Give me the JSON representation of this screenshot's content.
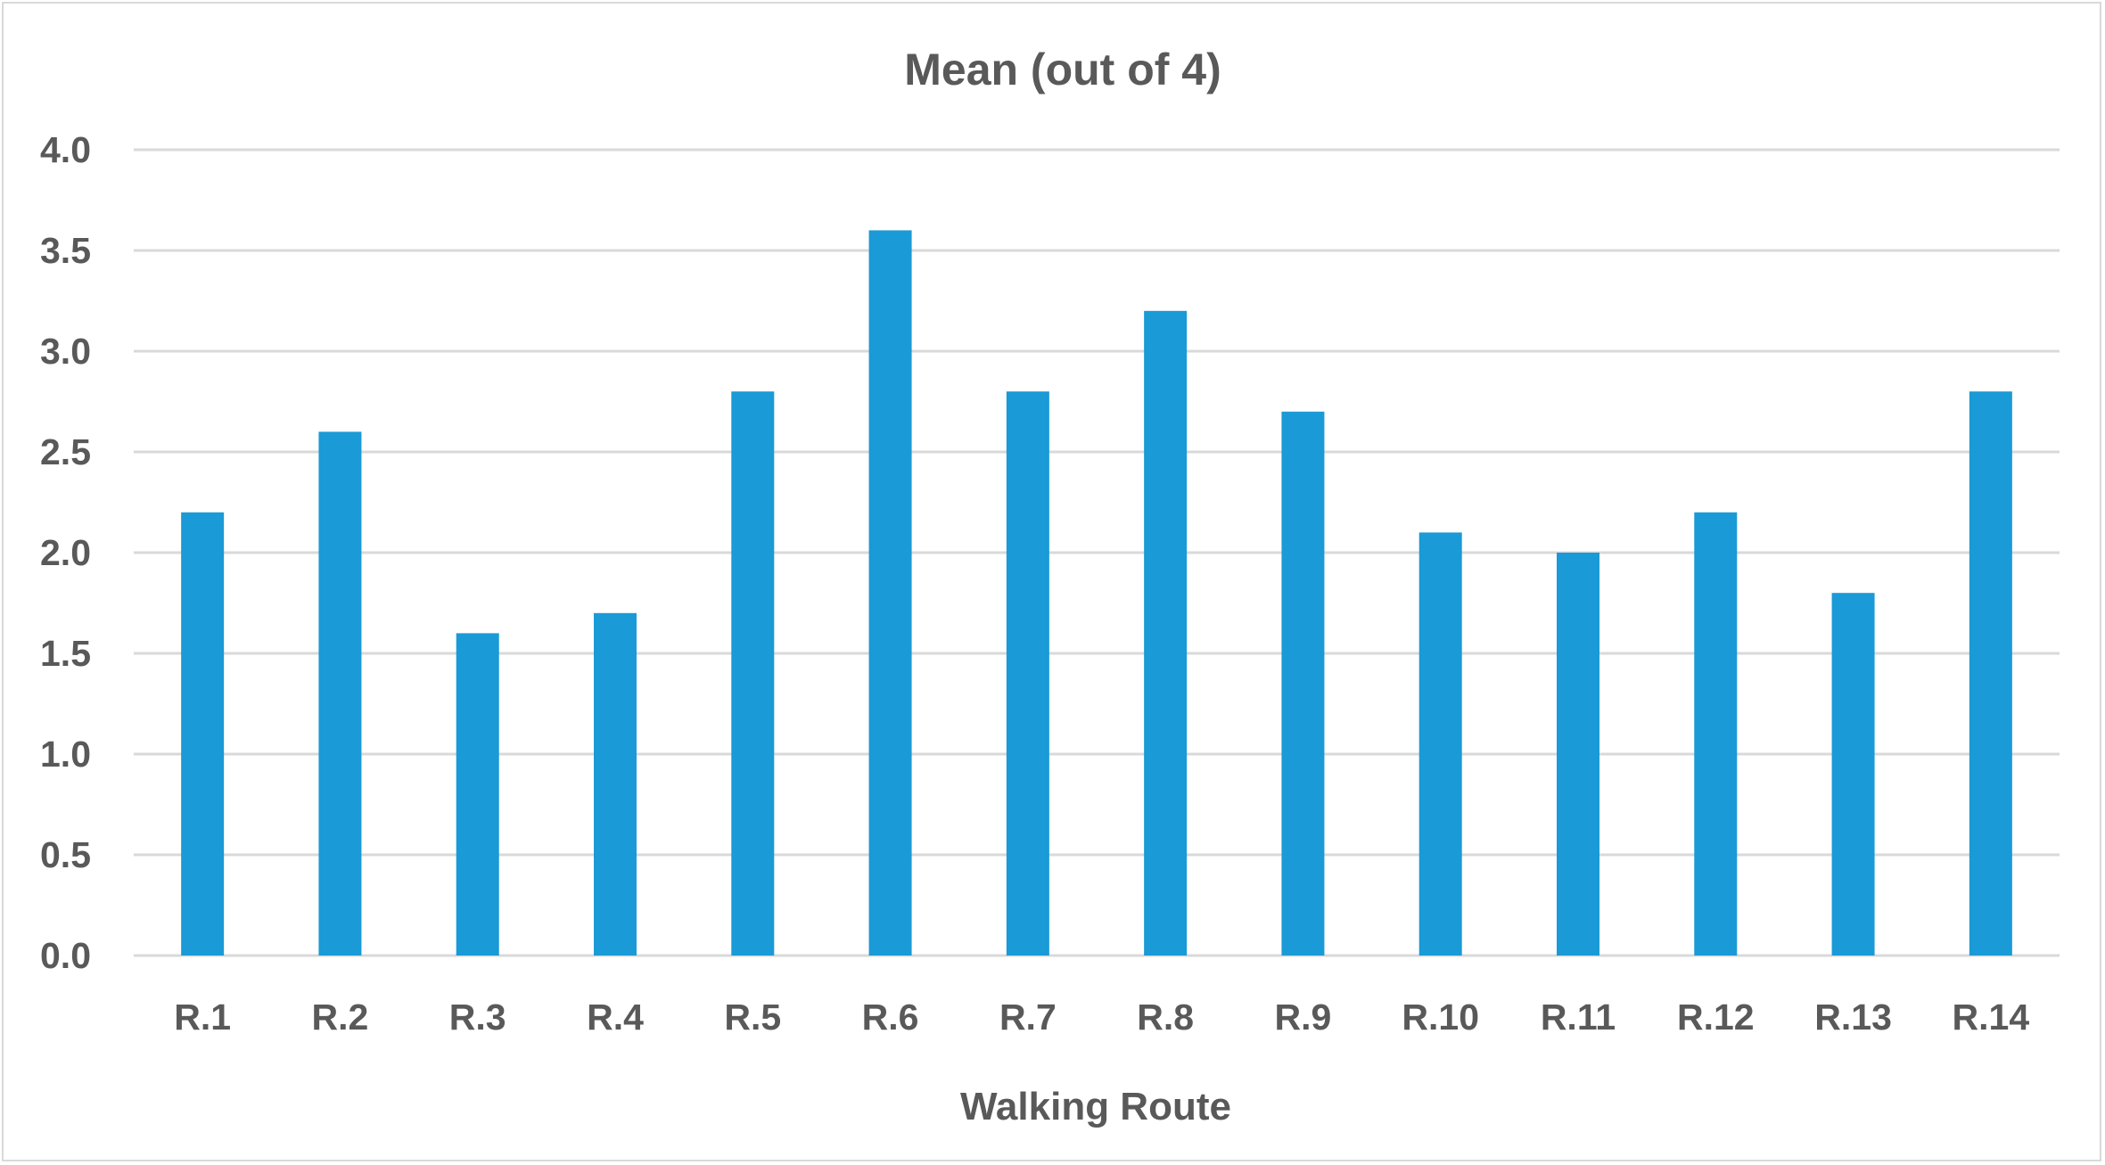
{
  "chart_data": {
    "type": "bar",
    "title": "Mean (out of 4)",
    "xlabel": "Walking Route",
    "ylabel": "",
    "categories": [
      "R.1",
      "R.2",
      "R.3",
      "R.4",
      "R.5",
      "R.6",
      "R.7",
      "R.8",
      "R.9",
      "R.10",
      "R.11",
      "R.12",
      "R.13",
      "R.14"
    ],
    "values": [
      2.2,
      2.6,
      1.6,
      1.7,
      2.8,
      3.6,
      2.8,
      3.2,
      2.7,
      2.1,
      2.0,
      2.2,
      1.8,
      2.8
    ],
    "ylim": [
      0,
      4
    ],
    "yticks": [
      "0.0",
      "0.5",
      "1.0",
      "1.5",
      "2.0",
      "2.5",
      "3.0",
      "3.5",
      "4.0"
    ],
    "grid": true,
    "legend": "none",
    "colors": {
      "bar": "#1a9ad6",
      "grid": "#d9d9d9",
      "text": "#595959",
      "frame": "#d9d9d9"
    }
  }
}
